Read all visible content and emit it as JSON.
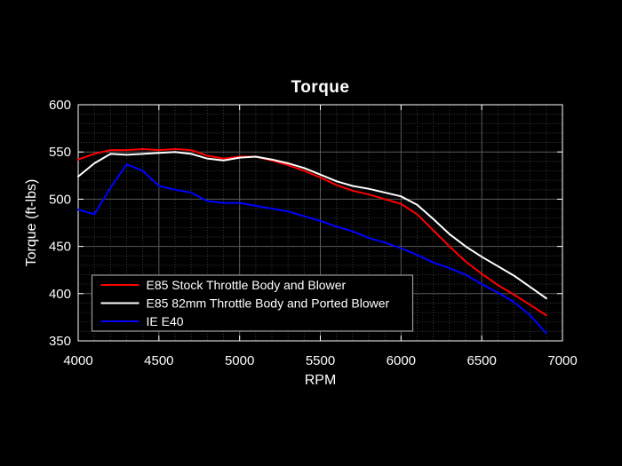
{
  "chart_data": {
    "type": "line",
    "title": "Torque",
    "xlabel": "RPM",
    "ylabel": "Torque (ft-lbs)",
    "xlim": [
      4000,
      7000
    ],
    "ylim": [
      350,
      600
    ],
    "xticks": [
      4000,
      4500,
      5000,
      5500,
      6000,
      6500,
      7000
    ],
    "yticks": [
      350,
      400,
      450,
      500,
      550,
      600
    ],
    "x_minor_step": 100,
    "y_minor_step": 10,
    "grid": true,
    "grid_minor": true,
    "legend_position": "bottom-left",
    "colors": {
      "background": "#000000",
      "axis": "#ffffff",
      "text": "#ffffff",
      "major_grid": "#5a5a5a",
      "minor_grid": "#3a3a3a",
      "legend_border": "#9a9a9a",
      "legend_background": "#000000"
    },
    "x": [
      4000,
      4100,
      4200,
      4300,
      4400,
      4500,
      4600,
      4700,
      4800,
      4900,
      5000,
      5100,
      5200,
      5300,
      5400,
      5500,
      5600,
      5700,
      5800,
      5900,
      6000,
      6100,
      6200,
      6300,
      6400,
      6500,
      6600,
      6700,
      6800,
      6900
    ],
    "series": [
      {
        "name": "E85 Stock Throttle Body and Blower",
        "color": "#ff0000",
        "values": [
          542,
          548,
          552,
          552,
          553,
          552,
          553,
          552,
          546,
          543,
          545,
          545,
          541,
          536,
          530,
          523,
          515,
          509,
          505,
          500,
          495,
          484,
          467,
          450,
          434,
          421,
          409,
          399,
          388,
          377
        ]
      },
      {
        "name": "E85 82mm Throttle Body and Ported Blower",
        "color": "#ffffff",
        "values": [
          524,
          538,
          548,
          547,
          548,
          549,
          550,
          548,
          543,
          541,
          544,
          545,
          542,
          538,
          533,
          526,
          519,
          514,
          511,
          507,
          503,
          494,
          479,
          463,
          450,
          439,
          429,
          419,
          407,
          395
        ]
      },
      {
        "name": "IE E40",
        "color": "#0000ff",
        "values": [
          489,
          484,
          512,
          537,
          530,
          514,
          510,
          507,
          498,
          496,
          496,
          493,
          490,
          487,
          482,
          477,
          471,
          466,
          459,
          454,
          448,
          441,
          433,
          427,
          420,
          410,
          401,
          391,
          377,
          358
        ]
      }
    ]
  }
}
